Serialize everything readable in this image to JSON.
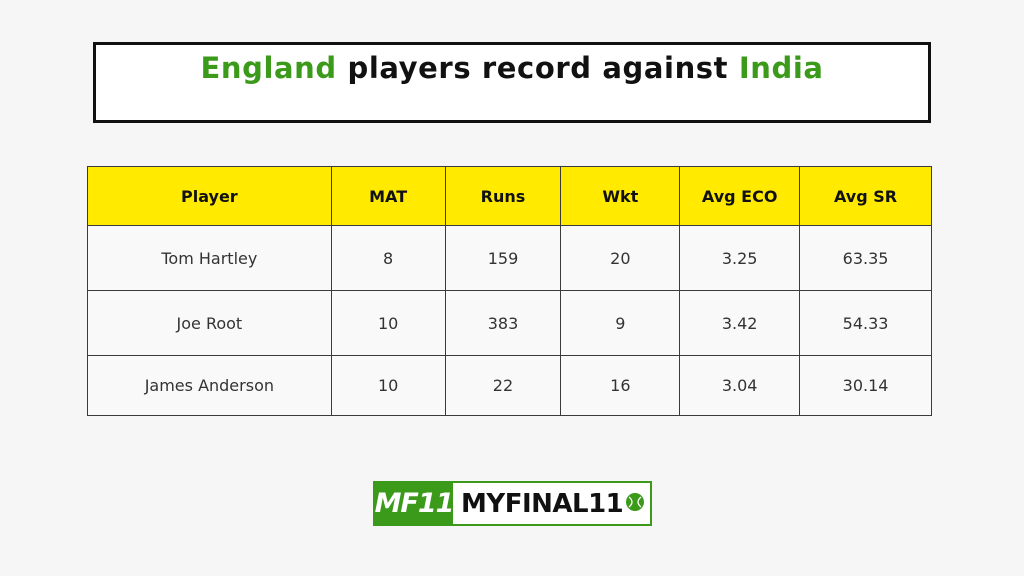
{
  "title": {
    "part1": "England",
    "part2": " players record against ",
    "part3": "India"
  },
  "table": {
    "headers": [
      "Player",
      "MAT",
      "Runs",
      "Wkt",
      "Avg ECO",
      "Avg SR"
    ],
    "rows": [
      [
        "Tom Hartley",
        "8",
        "159",
        "20",
        "3.25",
        "63.35"
      ],
      [
        "Joe Root",
        "10",
        "383",
        "9",
        "3.42",
        "54.33"
      ],
      [
        "James Anderson",
        "10",
        "22",
        "16",
        "3.04",
        "30.14"
      ]
    ]
  },
  "logo": {
    "mark": "MF11",
    "text": "MYFINAL11",
    "icon": "cricket-ball-icon"
  },
  "colors": {
    "accent_green": "#3c9a1b",
    "header_yellow": "#ffea00",
    "border": "#3a3a3a"
  }
}
